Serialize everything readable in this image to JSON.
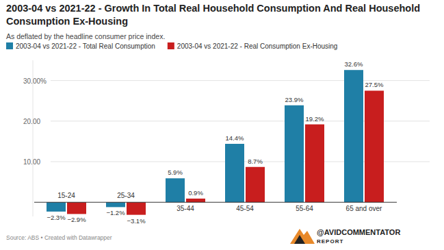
{
  "chart_data": {
    "type": "bar",
    "title": "2003-04 vs 2021-22 - Growth In Total Real Household Consumption And Real Household Consumption Ex-Housing",
    "subtitle": "As deflated by the headline consumer price index.",
    "categories": [
      "15-24",
      "25-34",
      "35-44",
      "45-54",
      "55-64",
      "65 and over"
    ],
    "series": [
      {
        "name": "2003-04 vs 2021-22 - Total Real Consumption",
        "color": "#1f7fa6",
        "values": [
          -2.3,
          -1.2,
          5.9,
          14.4,
          23.9,
          32.6
        ],
        "value_labels": [
          "−2.3%",
          "−1.2%",
          "5.9%",
          "14.4%",
          "23.9%",
          "32.6%"
        ]
      },
      {
        "name": "2003-04 vs 2021-22 - Real Consumption Ex-Housing",
        "color": "#c81e1e",
        "values": [
          -2.9,
          -3.1,
          0.9,
          8.7,
          19.2,
          27.5
        ],
        "value_labels": [
          "−2.9%",
          "−3.1%",
          "0.9%",
          "8.7%",
          "19.2%",
          "27.5%"
        ]
      }
    ],
    "ylim": [
      -3.5,
      35
    ],
    "yticks": [
      {
        "value": 10,
        "label": "10.00"
      },
      {
        "value": 20,
        "label": "20.00"
      },
      {
        "value": 30,
        "label": "30.00%"
      }
    ],
    "grid": true,
    "data_labels": true,
    "legend": "top-left",
    "source": "Source: ABS • Created with Datawrapper",
    "annotations": [
      "@AVIDCOMMENTATOR",
      "REPORT"
    ]
  }
}
